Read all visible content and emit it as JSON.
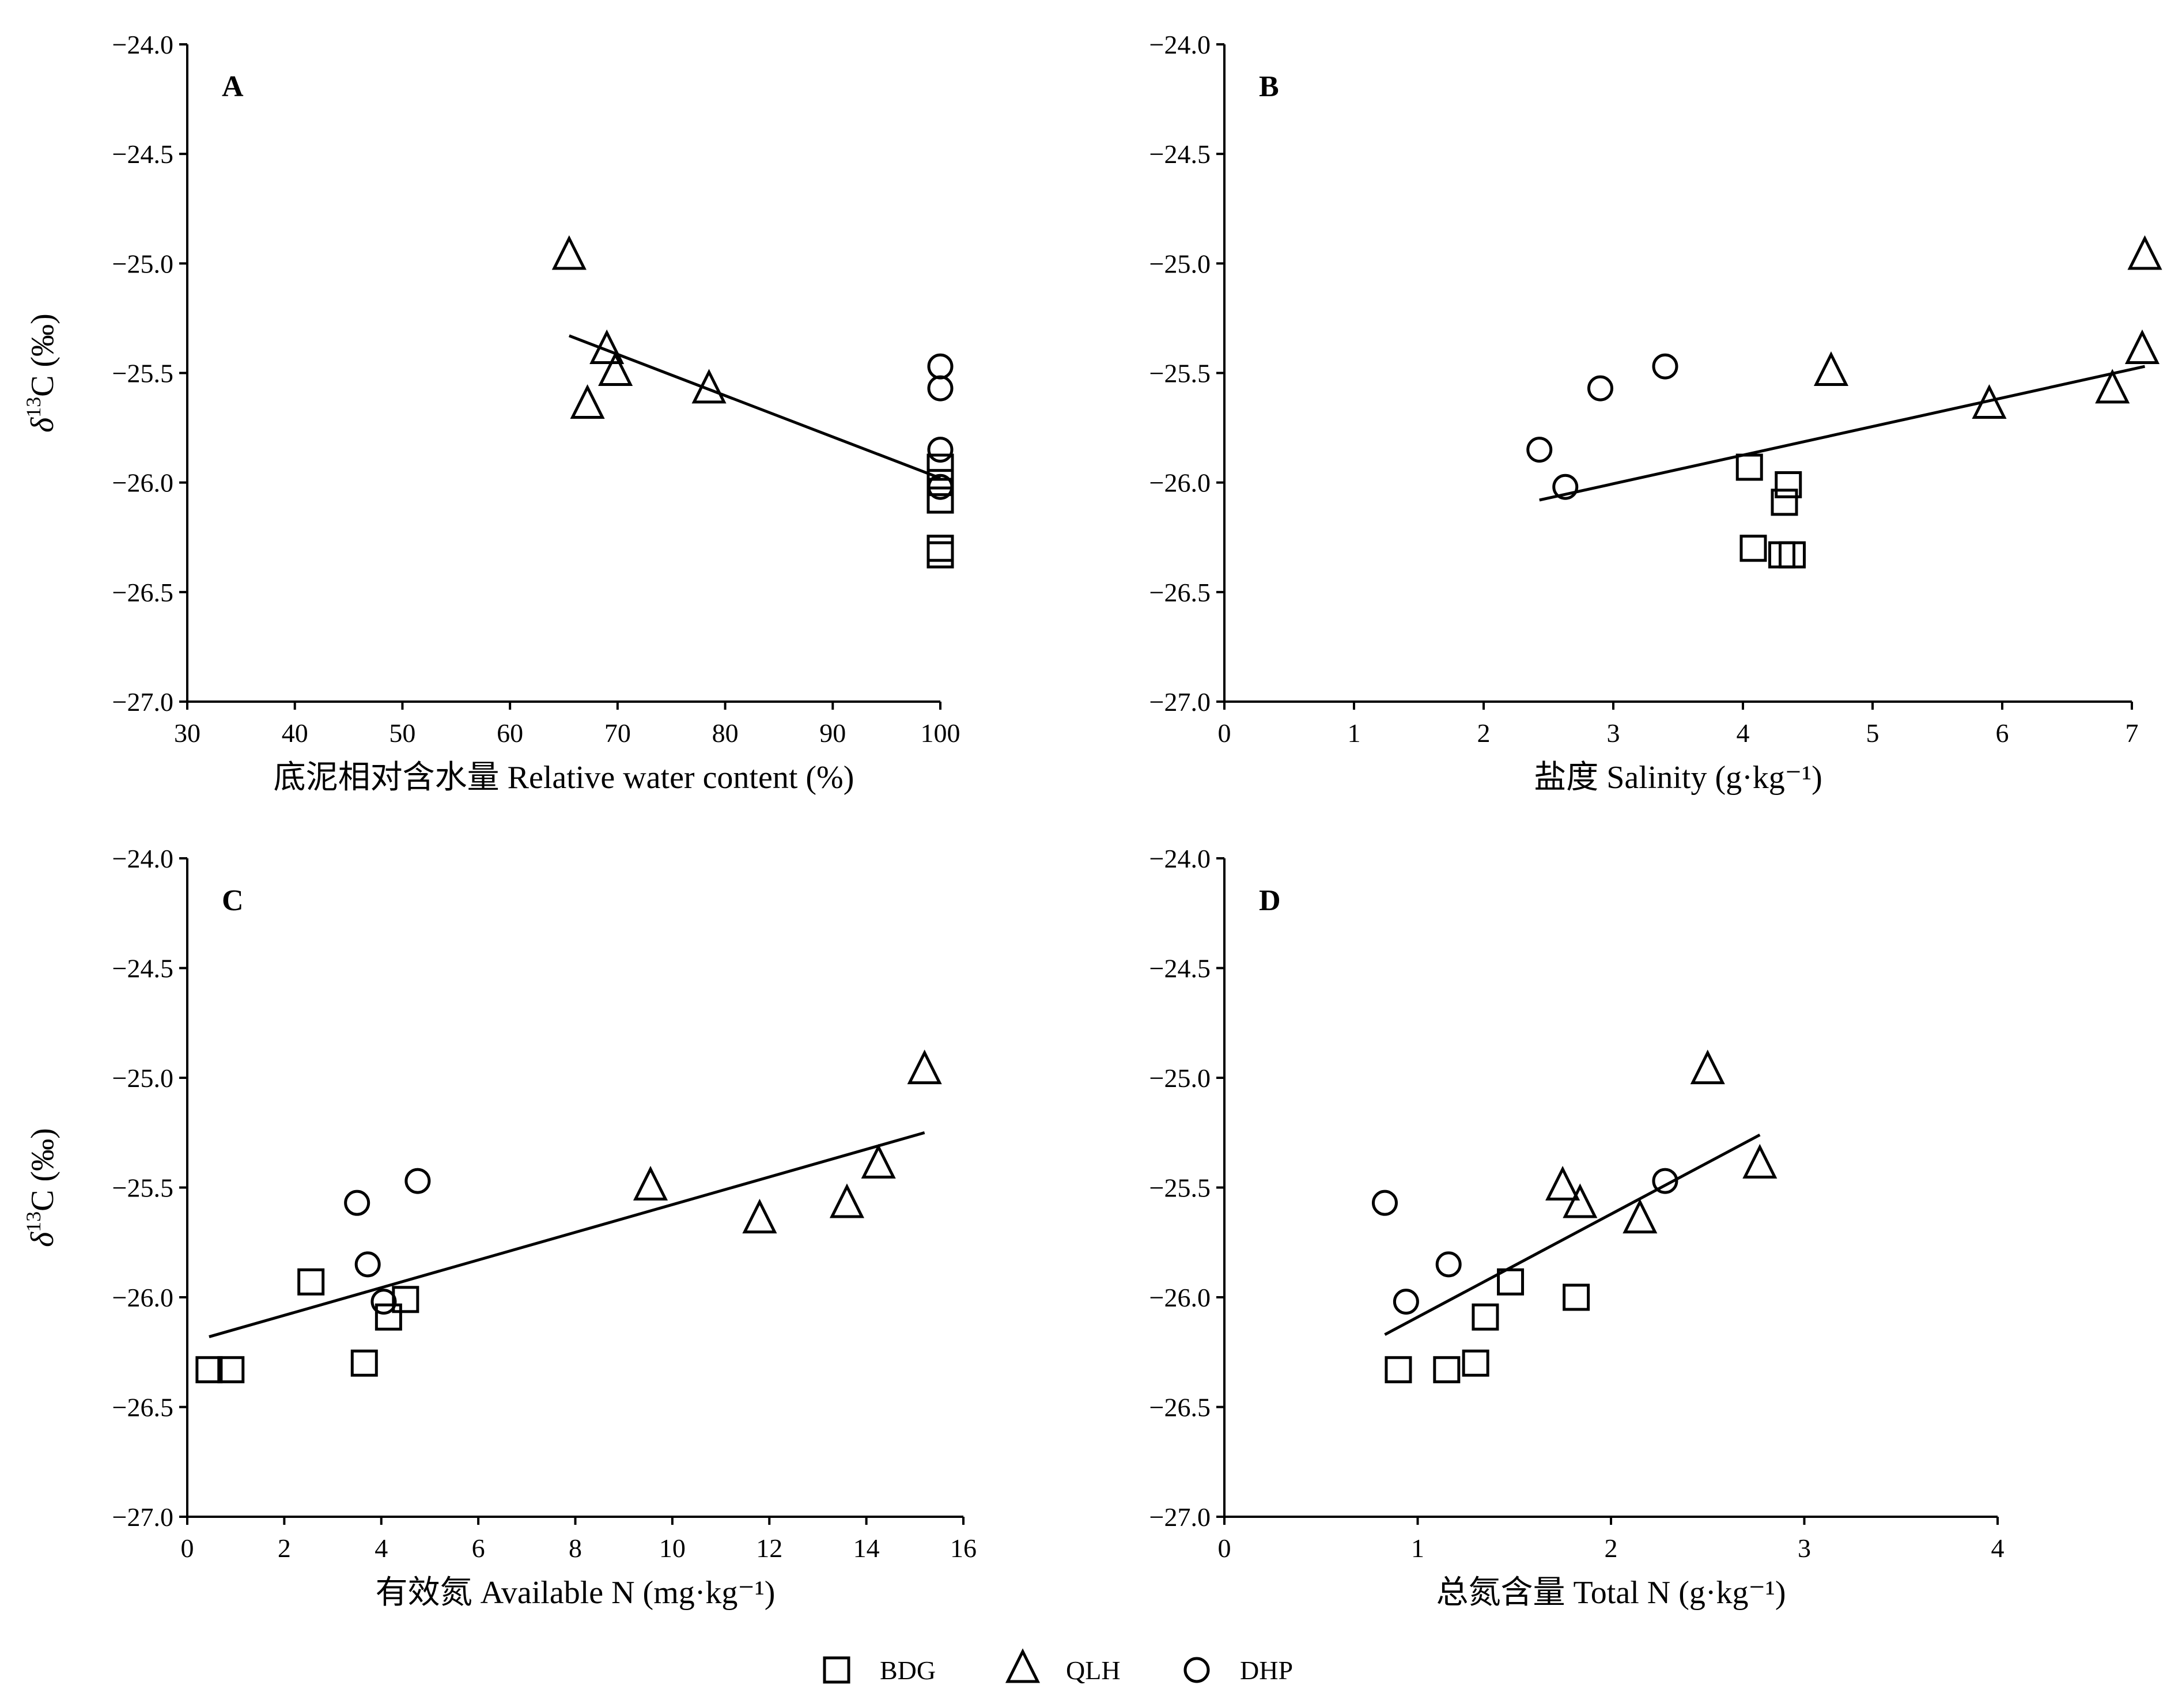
{
  "legend": [
    {
      "label": "BDG",
      "marker": "square"
    },
    {
      "label": "QLH",
      "marker": "triangle"
    },
    {
      "label": "DHP",
      "marker": "circle"
    }
  ],
  "chart_data": [
    {
      "type": "scatter",
      "panel": "A",
      "xlabel": "底泥相对含水量 Relative water content (%)",
      "ylabel": "δ13C (‰)",
      "xlim": [
        30,
        100
      ],
      "ylim": [
        -27.0,
        -24.0
      ],
      "xticks": [
        30,
        40,
        50,
        60,
        70,
        80,
        90,
        100
      ],
      "xtick_labels": [
        "30",
        "40",
        "50",
        "60",
        "70",
        "80",
        "90",
        "100"
      ],
      "yticks": [
        -24.0,
        -24.5,
        -25.0,
        -25.5,
        -26.0,
        -26.5,
        -27.0
      ],
      "ytick_labels": [
        "−24.0",
        "−24.5",
        "−25.0",
        "−25.5",
        "−26.0",
        "−26.5",
        "−27.0"
      ],
      "series": [
        {
          "name": "BDG",
          "marker": "square",
          "points": [
            [
              100,
              -26.08
            ],
            [
              100,
              -26.3
            ],
            [
              100,
              -26.33
            ],
            [
              100,
              -26.0
            ],
            [
              100,
              -25.93
            ]
          ]
        },
        {
          "name": "QLH",
          "marker": "triangle",
          "points": [
            [
              65.5,
              -24.97
            ],
            [
              69,
              -25.4
            ],
            [
              69.8,
              -25.5
            ],
            [
              67.2,
              -25.65
            ],
            [
              78.5,
              -25.58
            ]
          ]
        },
        {
          "name": "DHP",
          "marker": "circle",
          "points": [
            [
              100,
              -25.47
            ],
            [
              100,
              -25.57
            ],
            [
              100,
              -25.85
            ],
            [
              100,
              -26.02
            ]
          ]
        }
      ],
      "trendline": [
        [
          65.5,
          -25.33
        ],
        [
          100,
          -25.98
        ]
      ]
    },
    {
      "type": "scatter",
      "panel": "B",
      "xlabel": "盐度 Salinity (g·kg⁻¹)",
      "ylabel": "",
      "xlim": [
        0,
        7
      ],
      "ylim": [
        -27.0,
        -24.0
      ],
      "xticks": [
        0,
        1,
        2,
        3,
        4,
        5,
        6,
        7
      ],
      "xtick_labels": [
        "0",
        "1",
        "2",
        "3",
        "4",
        "5",
        "6",
        "7"
      ],
      "yticks": [
        -24.0,
        -24.5,
        -25.0,
        -25.5,
        -26.0,
        -26.5,
        -27.0
      ],
      "ytick_labels": [
        "−24.0",
        "−24.5",
        "−25.0",
        "−25.5",
        "−26.0",
        "−26.5",
        "−27.0"
      ],
      "series": [
        {
          "name": "BDG",
          "marker": "square",
          "points": [
            [
              4.05,
              -25.93
            ],
            [
              4.08,
              -26.3
            ],
            [
              4.32,
              -26.09
            ],
            [
              4.35,
              -26.01
            ],
            [
              4.3,
              -26.33
            ],
            [
              4.38,
              -26.33
            ]
          ]
        },
        {
          "name": "QLH",
          "marker": "triangle",
          "points": [
            [
              7.1,
              -24.97
            ],
            [
              7.08,
              -25.4
            ],
            [
              4.68,
              -25.5
            ],
            [
              5.9,
              -25.65
            ],
            [
              6.85,
              -25.58
            ]
          ]
        },
        {
          "name": "DHP",
          "marker": "circle",
          "points": [
            [
              2.43,
              -25.85
            ],
            [
              2.63,
              -26.02
            ],
            [
              2.9,
              -25.57
            ],
            [
              3.4,
              -25.47
            ]
          ]
        }
      ],
      "trendline": [
        [
          2.43,
          -26.08
        ],
        [
          7.1,
          -25.47
        ]
      ]
    },
    {
      "type": "scatter",
      "panel": "C",
      "xlabel": "有效氮 Available N (mg·kg⁻¹)",
      "ylabel": "δ13C (‰)",
      "xlim": [
        0,
        16
      ],
      "ylim": [
        -27.0,
        -24.0
      ],
      "xticks": [
        0,
        2,
        4,
        6,
        8,
        10,
        12,
        14,
        16
      ],
      "xtick_labels": [
        "0",
        "2",
        "4",
        "6",
        "8",
        "10",
        "12",
        "14",
        "16"
      ],
      "yticks": [
        -24.0,
        -24.5,
        -25.0,
        -25.5,
        -26.0,
        -26.5,
        -27.0
      ],
      "ytick_labels": [
        "−24.0",
        "−24.5",
        "−25.0",
        "−25.5",
        "−26.0",
        "−26.5",
        "−27.0"
      ],
      "series": [
        {
          "name": "BDG",
          "marker": "square",
          "points": [
            [
              0.45,
              -26.33
            ],
            [
              0.9,
              -26.33
            ],
            [
              2.55,
              -25.93
            ],
            [
              3.65,
              -26.3
            ],
            [
              4.15,
              -26.09
            ],
            [
              4.5,
              -26.01
            ]
          ]
        },
        {
          "name": "QLH",
          "marker": "triangle",
          "points": [
            [
              15.2,
              -24.97
            ],
            [
              14.25,
              -25.4
            ],
            [
              9.55,
              -25.5
            ],
            [
              11.8,
              -25.65
            ],
            [
              13.6,
              -25.58
            ]
          ]
        },
        {
          "name": "DHP",
          "marker": "circle",
          "points": [
            [
              3.5,
              -25.57
            ],
            [
              3.72,
              -25.85
            ],
            [
              4.05,
              -26.02
            ],
            [
              4.75,
              -25.47
            ]
          ]
        }
      ],
      "trendline": [
        [
          0.45,
          -26.18
        ],
        [
          15.2,
          -25.25
        ]
      ]
    },
    {
      "type": "scatter",
      "panel": "D",
      "xlabel": "总氮含量 Total N (g·kg⁻¹)",
      "ylabel": "",
      "xlim": [
        0,
        4
      ],
      "ylim": [
        -27.0,
        -24.0
      ],
      "xticks": [
        0,
        1,
        2,
        3,
        4
      ],
      "xtick_labels": [
        "0",
        "1",
        "2",
        "3",
        "4"
      ],
      "yticks": [
        -24.0,
        -24.5,
        -25.0,
        -25.5,
        -26.0,
        -26.5,
        -27.0
      ],
      "ytick_labels": [
        "−24.0",
        "−24.5",
        "−25.0",
        "−25.5",
        "−26.0",
        "−26.5",
        "−27.0"
      ],
      "series": [
        {
          "name": "BDG",
          "marker": "square",
          "points": [
            [
              0.9,
              -26.33
            ],
            [
              1.15,
              -26.33
            ],
            [
              1.3,
              -26.3
            ],
            [
              1.35,
              -26.09
            ],
            [
              1.48,
              -25.93
            ],
            [
              1.82,
              -26.0
            ]
          ]
        },
        {
          "name": "QLH",
          "marker": "triangle",
          "points": [
            [
              2.5,
              -24.97
            ],
            [
              2.77,
              -25.4
            ],
            [
              1.75,
              -25.5
            ],
            [
              2.15,
              -25.65
            ],
            [
              1.84,
              -25.58
            ]
          ]
        },
        {
          "name": "DHP",
          "marker": "circle",
          "points": [
            [
              0.83,
              -25.57
            ],
            [
              0.94,
              -26.02
            ],
            [
              1.16,
              -25.85
            ],
            [
              2.28,
              -25.47
            ]
          ]
        }
      ],
      "trendline": [
        [
          0.83,
          -26.17
        ],
        [
          2.77,
          -25.26
        ]
      ]
    }
  ]
}
